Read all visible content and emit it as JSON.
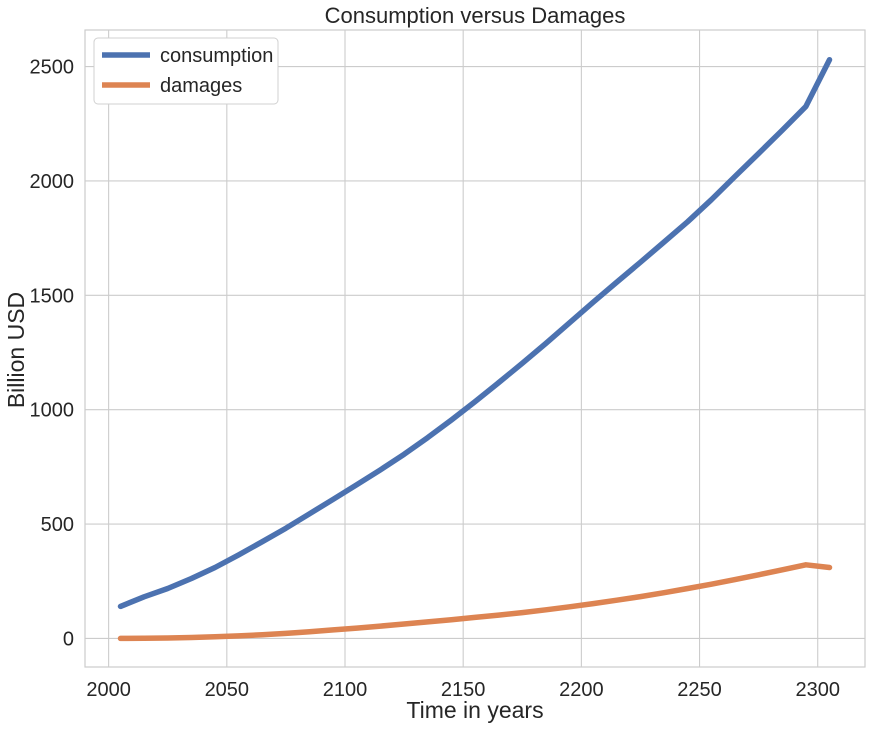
{
  "chart_data": {
    "type": "line",
    "title": "Consumption versus Damages",
    "xlabel": "Time in years",
    "ylabel": "Billion USD",
    "xlim": [
      1990,
      2320
    ],
    "ylim": [
      -125,
      2660
    ],
    "xticks": [
      2000,
      2050,
      2100,
      2150,
      2200,
      2250,
      2300
    ],
    "yticks": [
      0,
      500,
      1000,
      1500,
      2000,
      2500
    ],
    "grid": true,
    "legend_position": "top-left",
    "x": [
      2005,
      2015,
      2025,
      2035,
      2045,
      2055,
      2065,
      2075,
      2085,
      2095,
      2105,
      2115,
      2125,
      2135,
      2145,
      2155,
      2165,
      2175,
      2185,
      2195,
      2205,
      2215,
      2225,
      2235,
      2245,
      2255,
      2265,
      2275,
      2285,
      2295,
      2305
    ],
    "series": [
      {
        "name": "consumption",
        "color": "#4c72b0",
        "values": [
          140,
          182,
          218,
          262,
          310,
          365,
          423,
          482,
          545,
          608,
          672,
          737,
          805,
          878,
          955,
          1035,
          1118,
          1203,
          1290,
          1380,
          1470,
          1558,
          1645,
          1733,
          1822,
          1918,
          2020,
          2120,
          2222,
          2326,
          2530
        ]
      },
      {
        "name": "damages",
        "color": "#dd8452",
        "values": [
          0,
          1,
          2,
          4,
          7,
          11,
          16,
          22,
          29,
          37,
          45,
          54,
          63,
          72,
          82,
          92,
          102,
          113,
          125,
          138,
          152,
          167,
          183,
          200,
          218,
          237,
          257,
          278,
          300,
          322,
          310
        ]
      }
    ]
  }
}
